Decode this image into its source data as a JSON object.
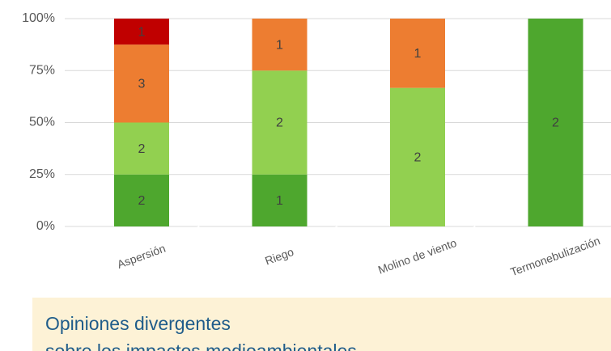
{
  "chart_data": {
    "type": "stacked_percent",
    "categories": [
      "Aspersión",
      "Riego",
      "Molino de viento",
      "Termonebulización"
    ],
    "series": [
      {
        "color": "#4ea72e",
        "values": [
          2,
          1,
          null,
          2
        ]
      },
      {
        "color": "#92d050",
        "values": [
          2,
          2,
          2,
          null
        ]
      },
      {
        "color": "#ed7d31",
        "values": [
          3,
          1,
          1,
          null
        ]
      },
      {
        "color": "#c00000",
        "values": [
          1,
          null,
          null,
          null
        ]
      }
    ],
    "ylim": [
      0,
      100
    ],
    "yticks": [
      {
        "value": 0,
        "label": "0%"
      },
      {
        "value": 25,
        "label": "25%"
      },
      {
        "value": 50,
        "label": "50%"
      },
      {
        "value": 75,
        "label": "75%"
      },
      {
        "value": 100,
        "label": "100%"
      }
    ],
    "grid": true,
    "note": [
      "Opiniones divergentes",
      "sobre los impactos medioambientales"
    ]
  }
}
